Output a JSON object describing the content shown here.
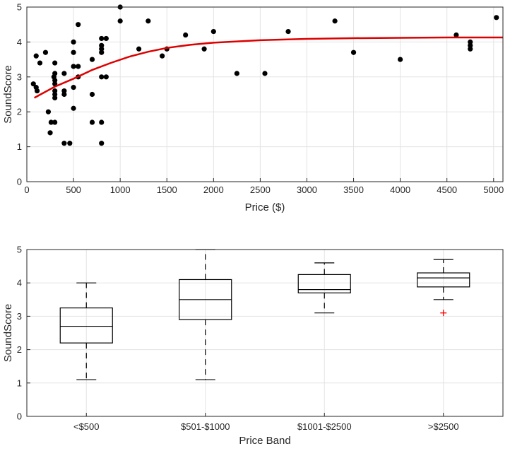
{
  "chart_data": [
    {
      "type": "scatter",
      "xlabel": "Price ($)",
      "ylabel": "SoundScore",
      "xlim": [
        0,
        5100
      ],
      "ylim": [
        0,
        5
      ],
      "xticks": [
        0,
        500,
        1000,
        1500,
        2000,
        2500,
        3000,
        3500,
        4000,
        4500,
        5000
      ],
      "yticks": [
        0,
        1,
        2,
        3,
        4,
        5
      ],
      "grid": true,
      "point_color": "#000000",
      "fit_color": "#dd0000",
      "points": [
        [
          70,
          2.8
        ],
        [
          100,
          3.6
        ],
        [
          100,
          2.7
        ],
        [
          110,
          2.6
        ],
        [
          140,
          3.4
        ],
        [
          200,
          3.7
        ],
        [
          230,
          2.0
        ],
        [
          250,
          1.4
        ],
        [
          260,
          1.7
        ],
        [
          290,
          3.0
        ],
        [
          300,
          3.4
        ],
        [
          300,
          3.1
        ],
        [
          300,
          2.9
        ],
        [
          300,
          2.8
        ],
        [
          300,
          2.6
        ],
        [
          300,
          2.5
        ],
        [
          300,
          2.4
        ],
        [
          300,
          1.7
        ],
        [
          400,
          3.1
        ],
        [
          400,
          2.6
        ],
        [
          400,
          2.5
        ],
        [
          400,
          1.1
        ],
        [
          460,
          1.1
        ],
        [
          500,
          4.0
        ],
        [
          500,
          3.7
        ],
        [
          500,
          3.3
        ],
        [
          500,
          2.7
        ],
        [
          500,
          2.1
        ],
        [
          550,
          4.5
        ],
        [
          550,
          3.3
        ],
        [
          550,
          3.0
        ],
        [
          700,
          3.5
        ],
        [
          700,
          2.5
        ],
        [
          700,
          1.7
        ],
        [
          800,
          4.1
        ],
        [
          800,
          3.9
        ],
        [
          800,
          3.8
        ],
        [
          800,
          3.7
        ],
        [
          800,
          3.0
        ],
        [
          800,
          1.7
        ],
        [
          800,
          1.1
        ],
        [
          850,
          4.1
        ],
        [
          850,
          3.0
        ],
        [
          1000,
          5.0
        ],
        [
          1000,
          4.6
        ],
        [
          1200,
          3.8
        ],
        [
          1300,
          4.6
        ],
        [
          1450,
          3.6
        ],
        [
          1500,
          3.8
        ],
        [
          1700,
          4.2
        ],
        [
          1900,
          3.8
        ],
        [
          2000,
          4.3
        ],
        [
          2250,
          3.1
        ],
        [
          2550,
          3.1
        ],
        [
          2800,
          4.3
        ],
        [
          3300,
          4.6
        ],
        [
          3500,
          3.7
        ],
        [
          4000,
          3.5
        ],
        [
          4600,
          4.2
        ],
        [
          4750,
          4.0
        ],
        [
          4750,
          3.9
        ],
        [
          4750,
          3.8
        ],
        [
          5030,
          4.7
        ]
      ],
      "fit_curve": {
        "x": [
          80,
          300,
          500,
          700,
          900,
          1100,
          1300,
          1500,
          1750,
          2000,
          2500,
          3000,
          3500,
          4000,
          4500,
          5100
        ],
        "y": [
          2.4,
          2.72,
          2.95,
          3.2,
          3.4,
          3.58,
          3.72,
          3.83,
          3.92,
          3.98,
          4.05,
          4.09,
          4.11,
          4.12,
          4.13,
          4.13
        ]
      }
    },
    {
      "type": "box",
      "xlabel": "Price Band",
      "ylabel": "SoundScore",
      "ylim": [
        0,
        5
      ],
      "yticks": [
        0,
        1,
        2,
        3,
        4,
        5
      ],
      "grid": true,
      "outlier_color": "#ff0000",
      "boxes": [
        {
          "label": "<$500",
          "whisker_low": 1.1,
          "q1": 2.2,
          "median": 2.7,
          "q3": 3.25,
          "whisker_high": 4.0,
          "outliers": []
        },
        {
          "label": "$501-$1000",
          "whisker_low": 1.1,
          "q1": 2.9,
          "median": 3.5,
          "q3": 4.1,
          "whisker_high": 5.0,
          "outliers": []
        },
        {
          "label": "$1001-$2500",
          "whisker_low": 3.1,
          "q1": 3.7,
          "median": 3.8,
          "q3": 4.25,
          "whisker_high": 4.6,
          "outliers": []
        },
        {
          "label": ">$2500",
          "whisker_low": 3.5,
          "q1": 3.88,
          "median": 4.15,
          "q3": 4.3,
          "whisker_high": 4.7,
          "outliers": [
            3.1
          ]
        }
      ]
    }
  ]
}
